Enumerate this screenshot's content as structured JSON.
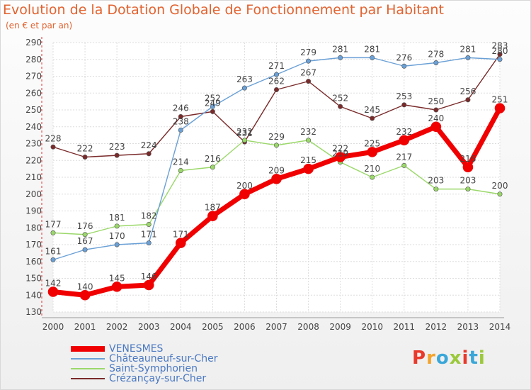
{
  "title": "Evolution de la Dotation Globale de Fonctionnement par Habitant",
  "subtitle": "(en € et par an)",
  "logo": {
    "text": "Proxiti",
    "colors": [
      "#e8392b",
      "#f3a32c",
      "#3aa7d8",
      "#9bc93b",
      "#e8392b",
      "#3aa7d8",
      "#9bc93b"
    ]
  },
  "chart_data": {
    "type": "line",
    "x": [
      2000,
      2001,
      2002,
      2003,
      2004,
      2005,
      2006,
      2007,
      2008,
      2009,
      2010,
      2011,
      2012,
      2013,
      2014
    ],
    "ylim": [
      130,
      290
    ],
    "yticks": [
      130,
      140,
      150,
      160,
      170,
      180,
      190,
      200,
      210,
      220,
      230,
      240,
      250,
      260,
      270,
      280,
      290
    ],
    "grid": true,
    "legend_position": "bottom-left",
    "series": [
      {
        "name": "Crézançay-sur-Cher",
        "color": "#7a2a2a",
        "values": [
          228,
          222,
          223,
          224,
          246,
          249,
          231,
          262,
          267,
          252,
          245,
          253,
          250,
          256,
          283
        ]
      },
      {
        "name": "Saint-Symphorien",
        "color": "#9bd86a",
        "values": [
          177,
          176,
          181,
          182,
          214,
          216,
          232,
          229,
          232,
          219,
          210,
          217,
          203,
          203,
          200
        ]
      },
      {
        "name": "Châteauneuf-sur-Cher",
        "color": "#6aa0d6",
        "values": [
          161,
          167,
          170,
          171,
          238,
          252,
          263,
          271,
          279,
          281,
          281,
          276,
          278,
          281,
          280
        ]
      },
      {
        "name": "VENESMES",
        "color": "#f00000",
        "values": [
          142,
          140,
          145,
          146,
          171,
          187,
          200,
          209,
          215,
          222,
          225,
          232,
          240,
          216,
          251
        ]
      }
    ]
  }
}
